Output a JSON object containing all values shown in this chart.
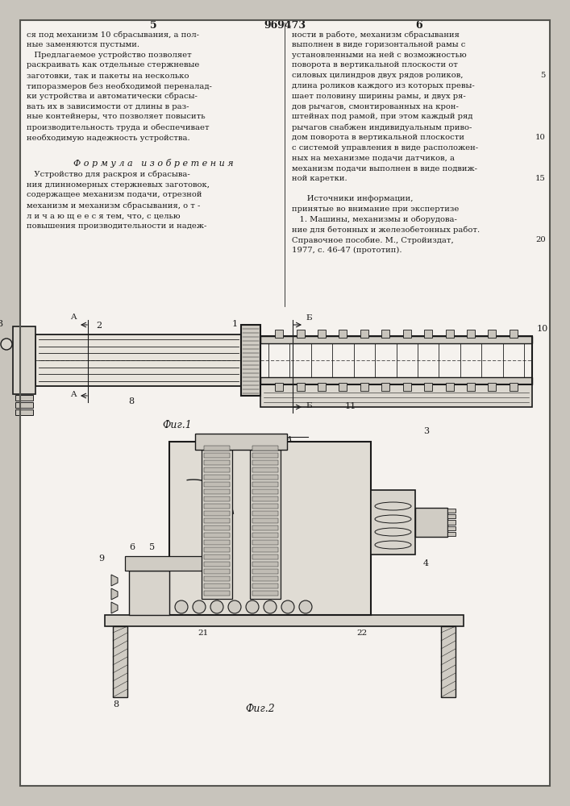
{
  "page_bg": "#f5f2ee",
  "outer_bg": "#c8c4bc",
  "text_color": "#1a1a1a",
  "line_color": "#1a1a1a",
  "patent_number": "969473",
  "col_left_num": "5",
  "col_right_num": "6",
  "left_col_lines": [
    "ся под механизм 10 сбрасывания, а пол-",
    "ные заменяются пустыми.",
    "   Предлагаемое устройство позволяет",
    "раскраивать как отдельные стержневые",
    "заготовки, так и пакеты на несколько",
    "типоразмеров без необходимой переналад-",
    "ки устройства и автоматически сбрасы-",
    "вать их в зависимости от длины в раз-",
    "ные контейнеры, что позволяет повысить",
    "производительность труда и обеспечивает",
    "необходимую надежность устройства."
  ],
  "right_col_lines": [
    "ности в работе, механизм сбрасывания",
    "выполнен в виде горизонтальной рамы с",
    "установленными на ней с возможностью",
    "поворота в вертикальной плоскости от",
    "силовых цилиндров двух рядов роликов,",
    "длина роликов каждого из которых превы-",
    "шает половину ширины рамы, и двух ря-",
    "дов рычагов, смонтированных на крон-",
    "штейнах под рамой, при этом каждый ряд",
    "рычагов снабжен индивидуальным приво-",
    "дом поворота в вертикальной плоскости",
    "с системой управления в виде расположен-",
    "ных на механизме подачи датчиков, а",
    "механизм подачи выполнен в виде подвиж-",
    "ной каретки."
  ],
  "right_line_numbers": [
    null,
    null,
    null,
    null,
    5,
    null,
    null,
    null,
    null,
    null,
    10,
    null,
    null,
    null,
    15
  ],
  "formula_header": "Ф о р м у л а   и з о б р е т е н и я",
  "formula_lines": [
    "   Устройство для раскроя и сбрасыва-",
    "ния длинномерных стержневых заготовок,",
    "содержащее механизм подачи, отрезной",
    "механизм и механизм сбрасывания, о т -",
    "л и ч а ю щ е е с я тем, что, с целью",
    "повышения производительности и надеж-"
  ],
  "sources_lines": [
    "      Источники информации,",
    "принятые во внимание при экспертизе",
    "   1. Машины, механизмы и оборудова-",
    "ние для бетонных и железобетонных работ.",
    "Справочное пособие. М., Стройиздат,",
    "1977, с. 46-47 (прототип)."
  ],
  "sources_line_numbers": [
    null,
    null,
    null,
    null,
    20,
    null
  ],
  "fig1_label": "Фиг.1",
  "fig2_label": "Фиг.2",
  "aa_label": "A-A"
}
